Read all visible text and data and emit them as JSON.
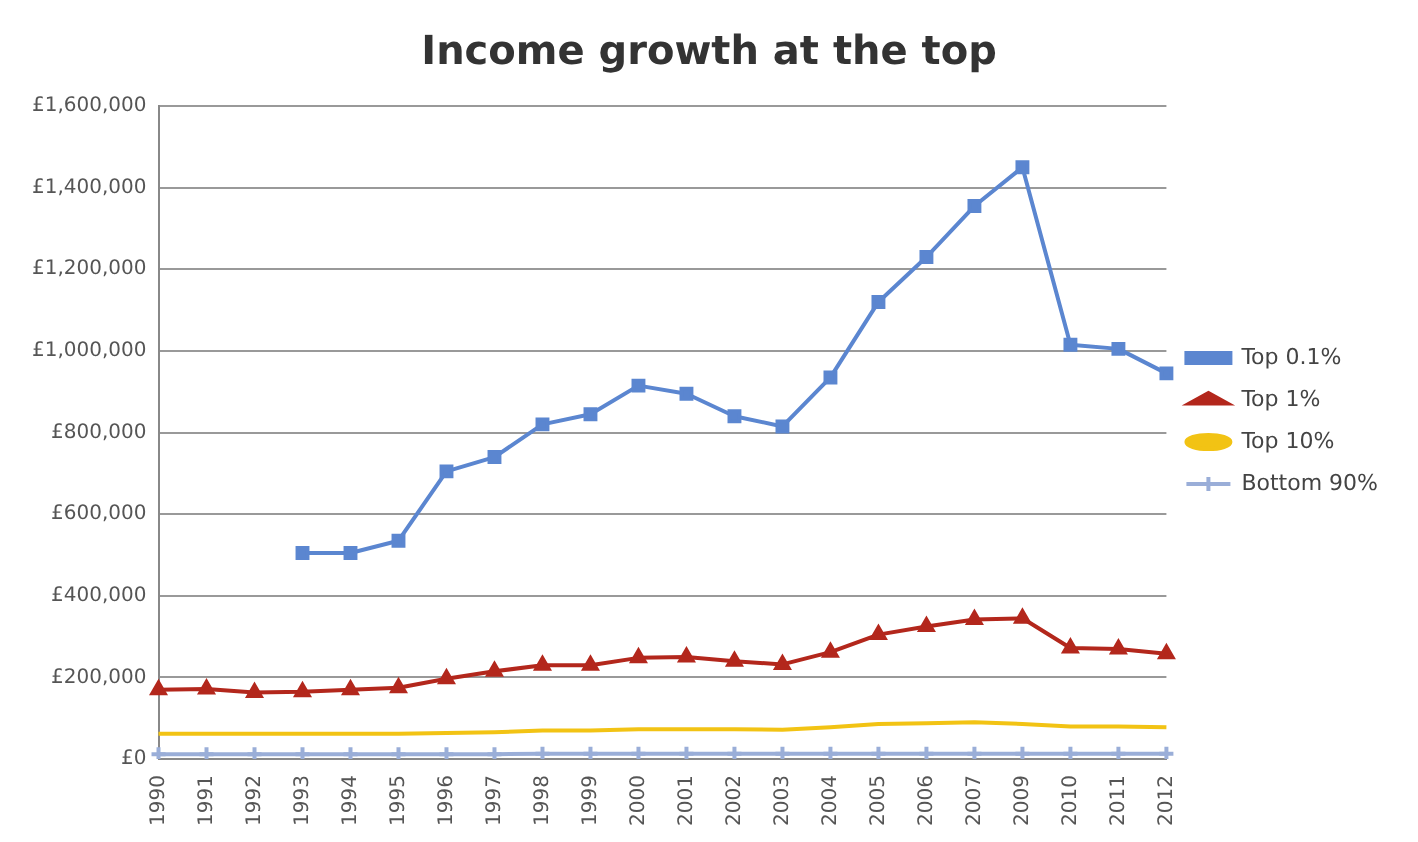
{
  "chart_data": {
    "type": "line",
    "title": "Income growth at the top",
    "categories": [
      "1990",
      "1991",
      "1992",
      "1993",
      "1994",
      "1995",
      "1996",
      "1997",
      "1998",
      "1999",
      "2000",
      "2001",
      "2002",
      "2003",
      "2004",
      "2005",
      "2006",
      "2007",
      "2009",
      "2010",
      "2011",
      "2012"
    ],
    "series": [
      {
        "name": "Top 0.1%",
        "color": "#5b86d0",
        "marker": "square",
        "values": [
          null,
          null,
          null,
          505000,
          505000,
          535000,
          705000,
          740000,
          820000,
          845000,
          915000,
          895000,
          840000,
          815000,
          935000,
          1120000,
          1230000,
          1355000,
          1450000,
          1015000,
          1005000,
          945000
        ]
      },
      {
        "name": "Top 1%",
        "color": "#b3271c",
        "marker": "triangle",
        "values": [
          170000,
          172000,
          163000,
          165000,
          170000,
          175000,
          197000,
          215000,
          230000,
          230000,
          248000,
          250000,
          240000,
          232000,
          262000,
          305000,
          325000,
          342000,
          345000,
          272000,
          270000,
          258000
        ]
      },
      {
        "name": "Top 10%",
        "color": "#f2c314",
        "marker": "none",
        "values": [
          62000,
          62000,
          62000,
          62000,
          62000,
          62000,
          64000,
          66000,
          70000,
          70000,
          73000,
          73000,
          73000,
          72000,
          78000,
          86000,
          88000,
          90000,
          86000,
          80000,
          80000,
          78000
        ]
      },
      {
        "name": "Bottom 90%",
        "color": "#9aaed8",
        "marker": "cross",
        "values": [
          12000,
          12000,
          12000,
          12000,
          12000,
          12000,
          12000,
          12000,
          13000,
          13000,
          13000,
          13000,
          13000,
          13000,
          13000,
          13000,
          13000,
          13000,
          13000,
          13000,
          13000,
          13000
        ]
      }
    ],
    "ylim": [
      0,
      1600000
    ],
    "yticks": [
      {
        "value": 0,
        "label": "£0"
      },
      {
        "value": 200000,
        "label": "£200,000"
      },
      {
        "value": 400000,
        "label": "£400,000"
      },
      {
        "value": 600000,
        "label": "£600,000"
      },
      {
        "value": 800000,
        "label": "£800,000"
      },
      {
        "value": 1000000,
        "label": "£1,000,000"
      },
      {
        "value": 1200000,
        "label": "£1,200,000"
      },
      {
        "value": 1400000,
        "label": "£1,400,000"
      },
      {
        "value": 1600000,
        "label": "£1,600,000"
      }
    ],
    "grid": "y",
    "legend": "right"
  }
}
